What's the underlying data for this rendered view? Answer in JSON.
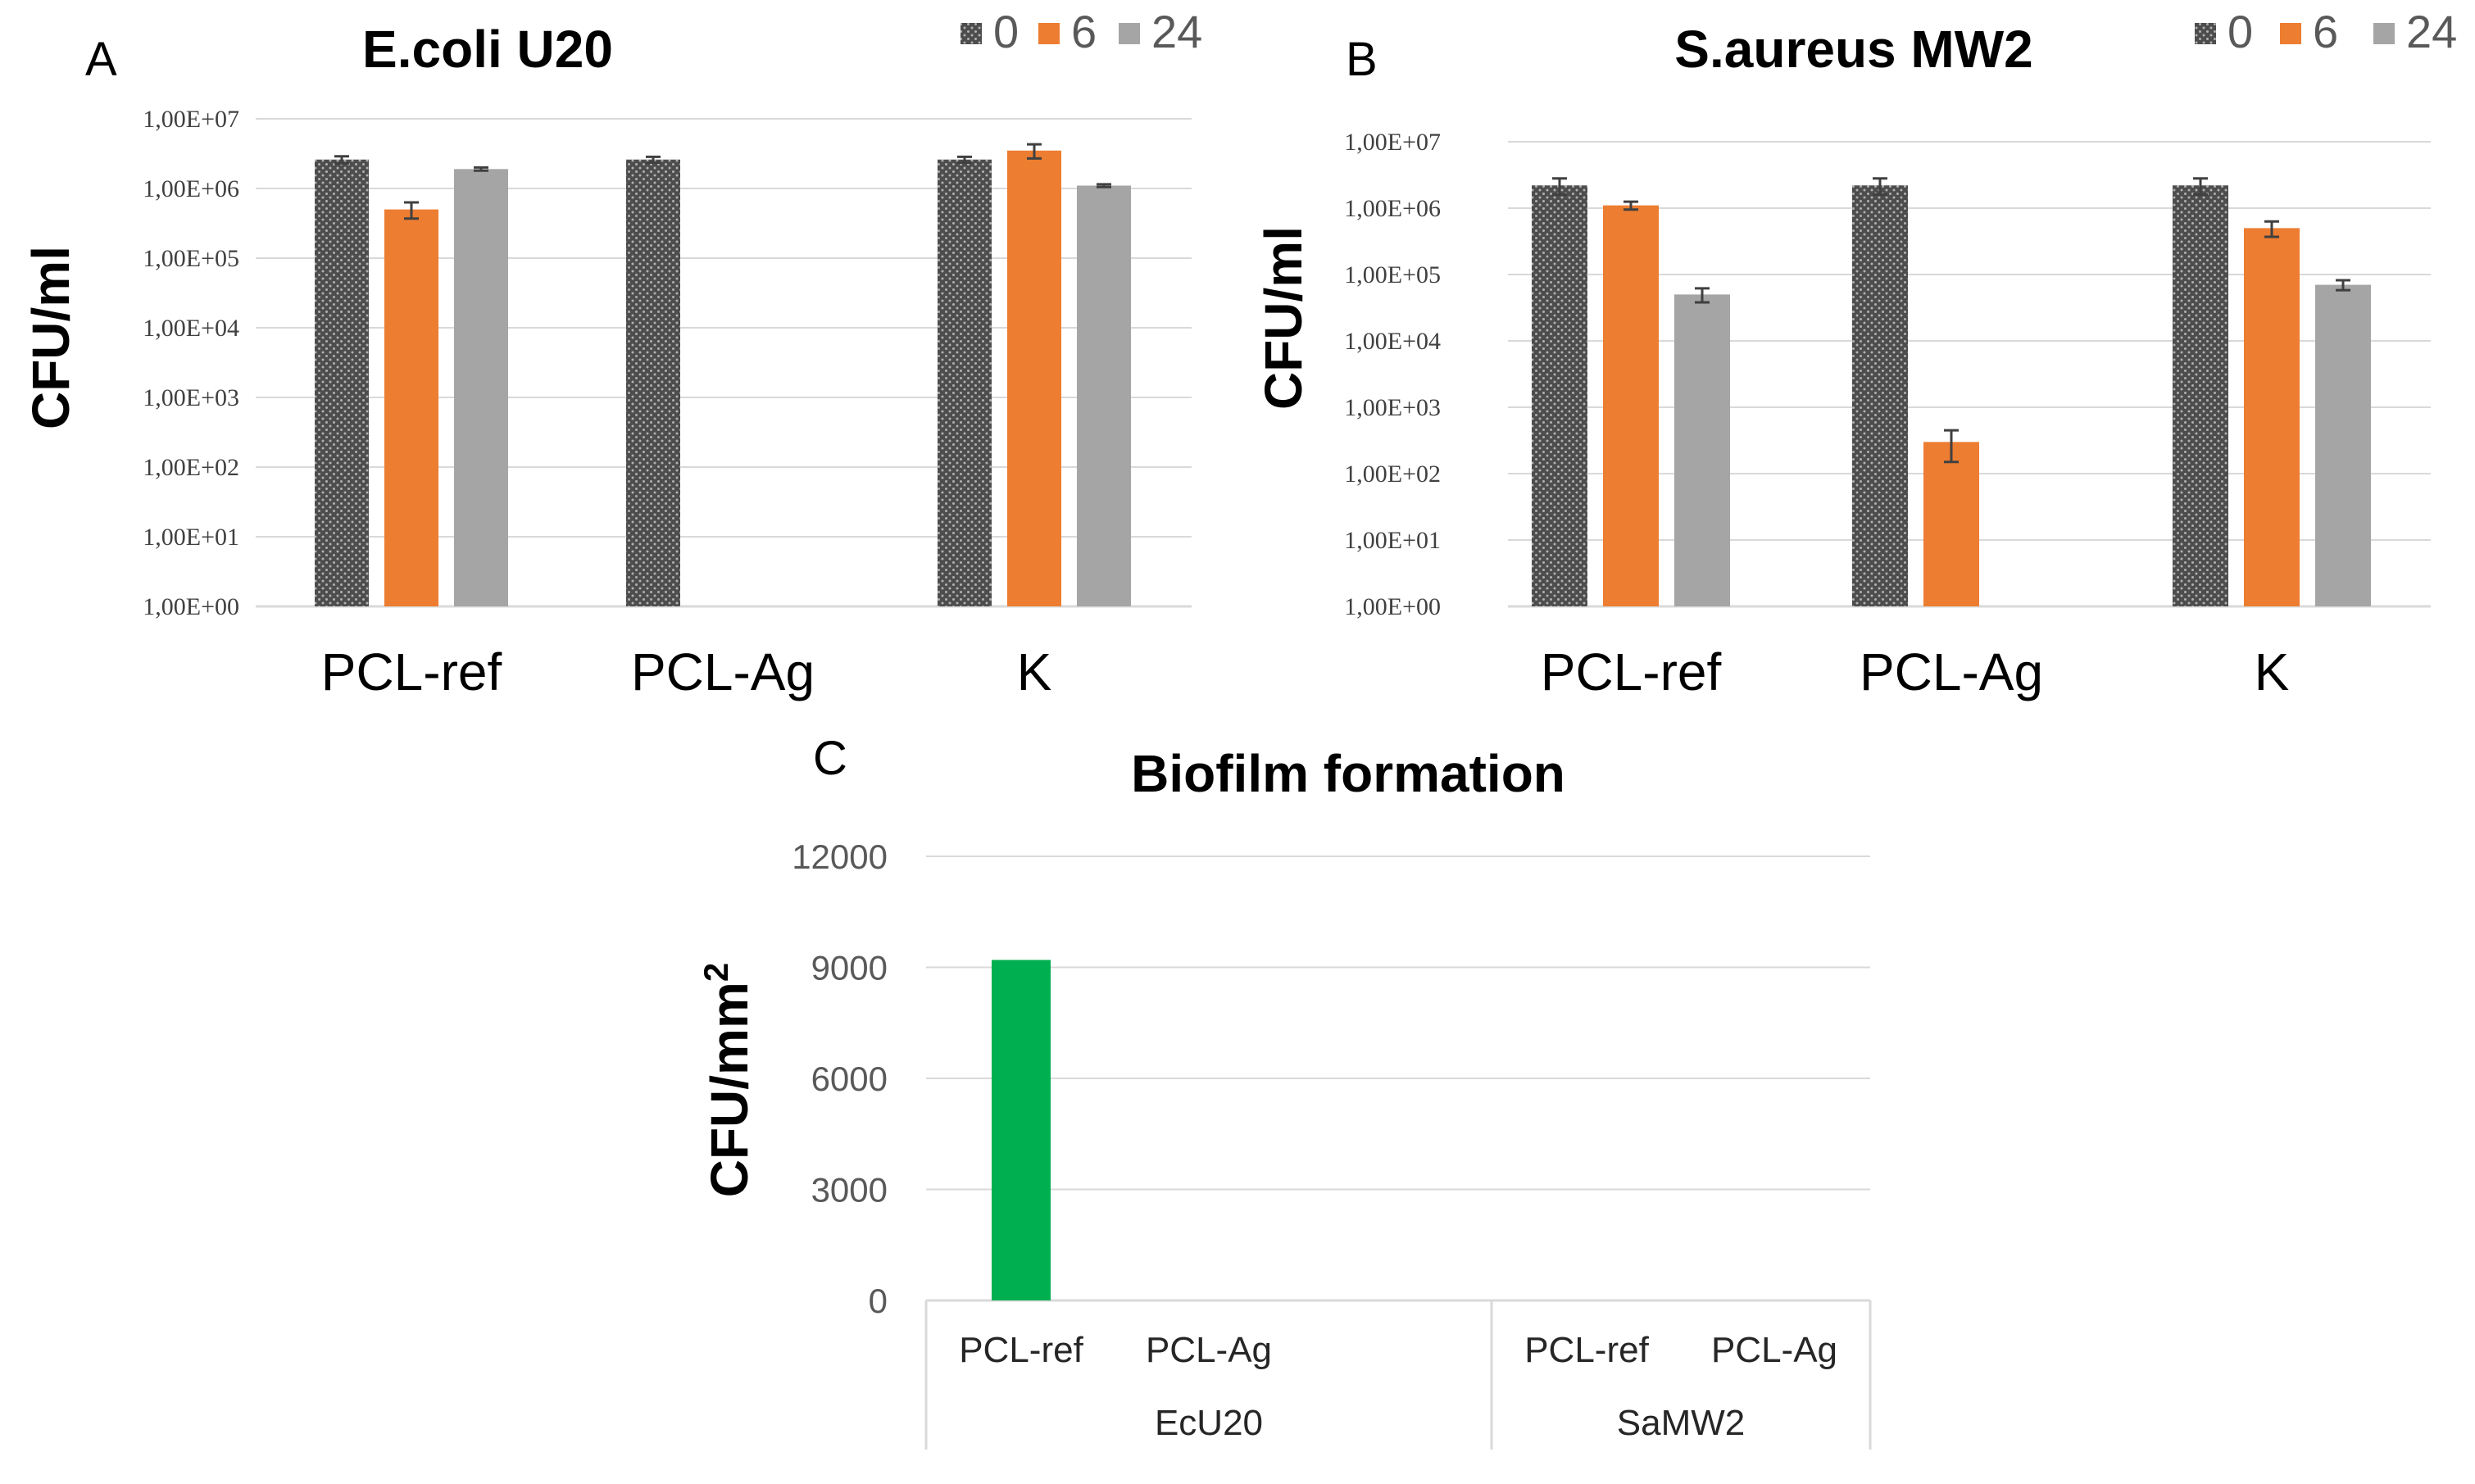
{
  "panels": {
    "A": {
      "letter": "A"
    },
    "B": {
      "letter": "B"
    },
    "C": {
      "letter": "C"
    }
  },
  "colors": {
    "t0": "#4d4d4d",
    "t6": "#ed7d31",
    "t24": "#a5a5a5",
    "biofilm": "#00b050"
  },
  "chart_data": [
    {
      "type": "bar",
      "id": "A",
      "title": "E.coli U20",
      "ylabel": "CFU/ml",
      "xlabel": "",
      "yscale": "log",
      "ylim": [
        1,
        10000000
      ],
      "yticks": [
        "1,00E+00",
        "1,00E+01",
        "1,00E+02",
        "1,00E+03",
        "1,00E+04",
        "1,00E+05",
        "1,00E+06",
        "1,00E+07"
      ],
      "categories": [
        "PCL-ref",
        "PCL-Ag",
        "K"
      ],
      "legend": {
        "position": "top-right",
        "labels": [
          "0",
          "6",
          "24"
        ]
      },
      "series": [
        {
          "name": "0",
          "values": [
            2600000,
            2600000,
            2600000
          ],
          "errors": [
            300000,
            250000,
            250000
          ]
        },
        {
          "name": "6",
          "values": [
            500000,
            null,
            3500000
          ],
          "errors": [
            130000,
            null,
            800000
          ]
        },
        {
          "name": "24",
          "values": [
            1900000,
            null,
            1100000
          ],
          "errors": [
            100000,
            null,
            50000
          ]
        }
      ]
    },
    {
      "type": "bar",
      "id": "B",
      "title": "S.aureus MW2",
      "ylabel": "CFU/ml",
      "xlabel": "",
      "yscale": "log",
      "ylim": [
        1,
        10000000
      ],
      "yticks": [
        "1,00E+00",
        "1,00E+01",
        "1,00E+02",
        "1,00E+03",
        "1,00E+04",
        "1,00E+05",
        "1,00E+06",
        "1,00E+07"
      ],
      "categories": [
        "PCL-ref",
        "PCL-Ag",
        "K"
      ],
      "legend": {
        "position": "top-right",
        "labels": [
          "0",
          "6",
          "24"
        ]
      },
      "series": [
        {
          "name": "0",
          "values": [
            2200000,
            2200000,
            2200000
          ],
          "errors": [
            600000,
            600000,
            600000
          ]
        },
        {
          "name": "6",
          "values": [
            1100000,
            300,
            500000
          ],
          "errors": [
            150000,
            150,
            130000
          ]
        },
        {
          "name": "24",
          "values": [
            50000,
            null,
            70000
          ],
          "errors": [
            12000,
            null,
            12000
          ]
        }
      ]
    },
    {
      "type": "bar",
      "id": "C",
      "title": "Biofilm formation",
      "ylabel": "CFU/mm",
      "ylabel_sup": "2",
      "xlabel": "",
      "yscale": "linear",
      "ylim": [
        0,
        12000
      ],
      "yticks": [
        "0",
        "3000",
        "6000",
        "9000",
        "12000"
      ],
      "categories": [
        "PCL-ref",
        "PCL-Ag",
        "PCL-ref",
        "PCL-Ag"
      ],
      "groups": [
        "EcU20",
        "SaMW2"
      ],
      "series": [
        {
          "name": "Biofilm",
          "values": [
            9200,
            0,
            0,
            0
          ]
        }
      ]
    }
  ]
}
